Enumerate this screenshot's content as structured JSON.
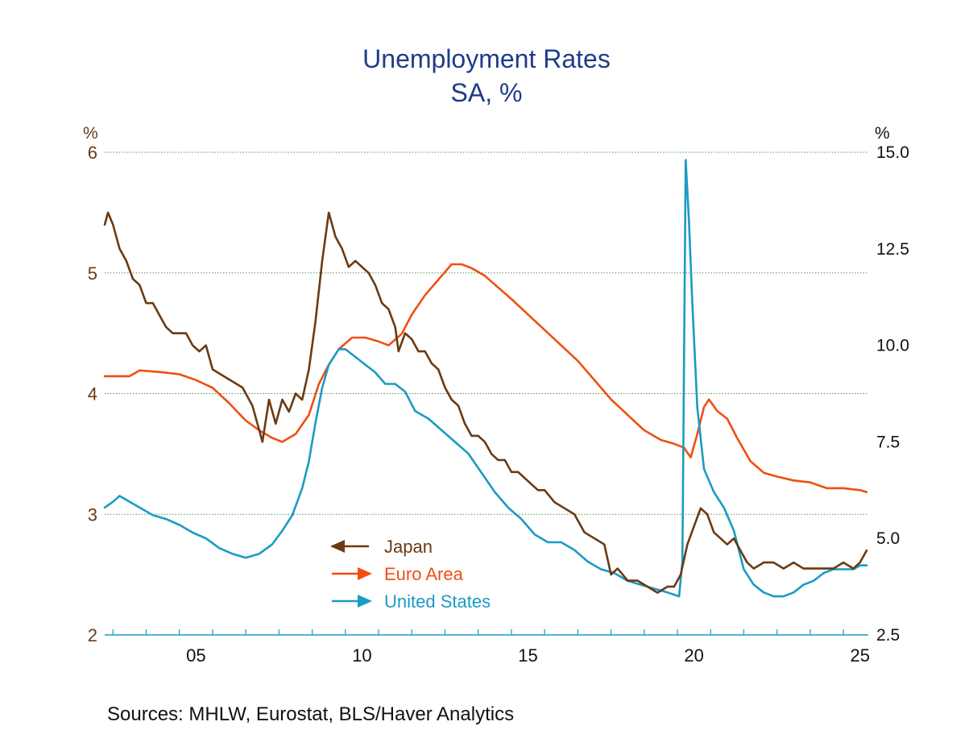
{
  "chart_data": {
    "type": "line",
    "title": "Unemployment Rates",
    "subtitle": "SA, %",
    "left_axis": {
      "unit": "%",
      "range": [
        2,
        6
      ],
      "ticks": [
        "2",
        "3",
        "4",
        "5",
        "6"
      ]
    },
    "right_axis": {
      "unit": "%",
      "range": [
        2.5,
        15.0
      ],
      "ticks": [
        "2.5",
        "5.0",
        "7.5",
        "10.0",
        "12.5",
        "15.0"
      ]
    },
    "x_axis": {
      "range": [
        2002.75,
        2025.75
      ],
      "ticks": [
        "05",
        "10",
        "15",
        "20",
        "25"
      ],
      "tick_years": [
        2005,
        2010,
        2015,
        2020,
        2025
      ]
    },
    "grid": "horizontal dotted at left-axis ticks",
    "legend_position": "lower-center",
    "source_text": "Sources:   MHLW, Eurostat, BLS/Haver Analytics",
    "series": [
      {
        "name": "Japan",
        "axis": "left",
        "color": "#6b3a12",
        "points": [
          [
            2002.75,
            5.4
          ],
          [
            2002.85,
            5.5
          ],
          [
            2003.0,
            5.4
          ],
          [
            2003.2,
            5.2
          ],
          [
            2003.4,
            5.1
          ],
          [
            2003.6,
            4.95
          ],
          [
            2003.8,
            4.9
          ],
          [
            2004.0,
            4.75
          ],
          [
            2004.2,
            4.75
          ],
          [
            2004.4,
            4.65
          ],
          [
            2004.6,
            4.55
          ],
          [
            2004.8,
            4.5
          ],
          [
            2005.0,
            4.5
          ],
          [
            2005.2,
            4.5
          ],
          [
            2005.4,
            4.4
          ],
          [
            2005.6,
            4.35
          ],
          [
            2005.8,
            4.4
          ],
          [
            2006.0,
            4.2
          ],
          [
            2006.3,
            4.15
          ],
          [
            2006.6,
            4.1
          ],
          [
            2006.9,
            4.05
          ],
          [
            2007.2,
            3.9
          ],
          [
            2007.4,
            3.7
          ],
          [
            2007.5,
            3.6
          ],
          [
            2007.7,
            3.95
          ],
          [
            2007.9,
            3.75
          ],
          [
            2008.1,
            3.95
          ],
          [
            2008.3,
            3.85
          ],
          [
            2008.5,
            4.0
          ],
          [
            2008.7,
            3.95
          ],
          [
            2008.9,
            4.2
          ],
          [
            2009.1,
            4.6
          ],
          [
            2009.3,
            5.1
          ],
          [
            2009.5,
            5.5
          ],
          [
            2009.7,
            5.3
          ],
          [
            2009.9,
            5.2
          ],
          [
            2010.1,
            5.05
          ],
          [
            2010.3,
            5.1
          ],
          [
            2010.5,
            5.05
          ],
          [
            2010.7,
            5.0
          ],
          [
            2010.9,
            4.9
          ],
          [
            2011.1,
            4.75
          ],
          [
            2011.3,
            4.7
          ],
          [
            2011.5,
            4.55
          ],
          [
            2011.6,
            4.35
          ],
          [
            2011.8,
            4.5
          ],
          [
            2012.0,
            4.45
          ],
          [
            2012.2,
            4.35
          ],
          [
            2012.4,
            4.35
          ],
          [
            2012.6,
            4.25
          ],
          [
            2012.8,
            4.2
          ],
          [
            2013.0,
            4.05
          ],
          [
            2013.2,
            3.95
          ],
          [
            2013.4,
            3.9
          ],
          [
            2013.6,
            3.75
          ],
          [
            2013.8,
            3.65
          ],
          [
            2014.0,
            3.65
          ],
          [
            2014.2,
            3.6
          ],
          [
            2014.4,
            3.5
          ],
          [
            2014.6,
            3.45
          ],
          [
            2014.8,
            3.45
          ],
          [
            2015.0,
            3.35
          ],
          [
            2015.2,
            3.35
          ],
          [
            2015.4,
            3.3
          ],
          [
            2015.6,
            3.25
          ],
          [
            2015.8,
            3.2
          ],
          [
            2016.0,
            3.2
          ],
          [
            2016.3,
            3.1
          ],
          [
            2016.6,
            3.05
          ],
          [
            2016.9,
            3.0
          ],
          [
            2017.2,
            2.85
          ],
          [
            2017.5,
            2.8
          ],
          [
            2017.8,
            2.75
          ],
          [
            2018.0,
            2.5
          ],
          [
            2018.2,
            2.55
          ],
          [
            2018.5,
            2.45
          ],
          [
            2018.8,
            2.45
          ],
          [
            2019.1,
            2.4
          ],
          [
            2019.4,
            2.35
          ],
          [
            2019.7,
            2.4
          ],
          [
            2019.9,
            2.4
          ],
          [
            2020.1,
            2.5
          ],
          [
            2020.3,
            2.75
          ],
          [
            2020.5,
            2.9
          ],
          [
            2020.7,
            3.05
          ],
          [
            2020.9,
            3.0
          ],
          [
            2021.1,
            2.85
          ],
          [
            2021.3,
            2.8
          ],
          [
            2021.5,
            2.75
          ],
          [
            2021.7,
            2.8
          ],
          [
            2021.9,
            2.7
          ],
          [
            2022.1,
            2.6
          ],
          [
            2022.3,
            2.55
          ],
          [
            2022.6,
            2.6
          ],
          [
            2022.9,
            2.6
          ],
          [
            2023.2,
            2.55
          ],
          [
            2023.5,
            2.6
          ],
          [
            2023.8,
            2.55
          ],
          [
            2024.1,
            2.55
          ],
          [
            2024.4,
            2.55
          ],
          [
            2024.7,
            2.55
          ],
          [
            2025.0,
            2.6
          ],
          [
            2025.3,
            2.55
          ],
          [
            2025.5,
            2.6
          ],
          [
            2025.7,
            2.7
          ]
        ]
      },
      {
        "name": "Euro Area",
        "axis": "right",
        "color": "#f04e12",
        "points": [
          [
            2002.75,
            9.2
          ],
          [
            2003.5,
            9.2
          ],
          [
            2003.8,
            9.35
          ],
          [
            2004.5,
            9.3
          ],
          [
            2005.0,
            9.25
          ],
          [
            2005.5,
            9.1
          ],
          [
            2006.0,
            8.9
          ],
          [
            2006.5,
            8.5
          ],
          [
            2007.0,
            8.05
          ],
          [
            2007.4,
            7.8
          ],
          [
            2007.8,
            7.6
          ],
          [
            2008.1,
            7.5
          ],
          [
            2008.5,
            7.7
          ],
          [
            2008.9,
            8.2
          ],
          [
            2009.2,
            9.0
          ],
          [
            2009.5,
            9.5
          ],
          [
            2009.8,
            9.9
          ],
          [
            2010.2,
            10.2
          ],
          [
            2010.6,
            10.2
          ],
          [
            2011.0,
            10.1
          ],
          [
            2011.3,
            10.0
          ],
          [
            2011.7,
            10.3
          ],
          [
            2012.0,
            10.8
          ],
          [
            2012.4,
            11.3
          ],
          [
            2012.8,
            11.7
          ],
          [
            2013.2,
            12.1
          ],
          [
            2013.5,
            12.1
          ],
          [
            2013.8,
            12.0
          ],
          [
            2014.2,
            11.8
          ],
          [
            2014.6,
            11.5
          ],
          [
            2015.0,
            11.2
          ],
          [
            2015.5,
            10.8
          ],
          [
            2016.0,
            10.4
          ],
          [
            2016.5,
            10.0
          ],
          [
            2017.0,
            9.6
          ],
          [
            2017.5,
            9.1
          ],
          [
            2018.0,
            8.6
          ],
          [
            2018.5,
            8.2
          ],
          [
            2019.0,
            7.8
          ],
          [
            2019.5,
            7.55
          ],
          [
            2019.9,
            7.45
          ],
          [
            2020.2,
            7.35
          ],
          [
            2020.4,
            7.1
          ],
          [
            2020.6,
            7.7
          ],
          [
            2020.8,
            8.4
          ],
          [
            2020.95,
            8.6
          ],
          [
            2021.2,
            8.3
          ],
          [
            2021.5,
            8.1
          ],
          [
            2021.8,
            7.6
          ],
          [
            2022.2,
            7.0
          ],
          [
            2022.6,
            6.7
          ],
          [
            2023.0,
            6.6
          ],
          [
            2023.5,
            6.5
          ],
          [
            2024.0,
            6.45
          ],
          [
            2024.5,
            6.3
          ],
          [
            2025.0,
            6.3
          ],
          [
            2025.5,
            6.25
          ],
          [
            2025.7,
            6.2
          ]
        ]
      },
      {
        "name": "United States",
        "axis": "right",
        "color": "#1a9bc4",
        "points": [
          [
            2002.75,
            5.8
          ],
          [
            2003.0,
            5.95
          ],
          [
            2003.2,
            6.1
          ],
          [
            2003.5,
            5.95
          ],
          [
            2003.8,
            5.8
          ],
          [
            2004.2,
            5.6
          ],
          [
            2004.6,
            5.5
          ],
          [
            2005.0,
            5.35
          ],
          [
            2005.4,
            5.15
          ],
          [
            2005.8,
            5.0
          ],
          [
            2006.2,
            4.75
          ],
          [
            2006.6,
            4.6
          ],
          [
            2007.0,
            4.5
          ],
          [
            2007.4,
            4.6
          ],
          [
            2007.8,
            4.85
          ],
          [
            2008.1,
            5.2
          ],
          [
            2008.4,
            5.6
          ],
          [
            2008.7,
            6.3
          ],
          [
            2008.9,
            7.0
          ],
          [
            2009.1,
            8.0
          ],
          [
            2009.3,
            8.9
          ],
          [
            2009.5,
            9.5
          ],
          [
            2009.8,
            9.9
          ],
          [
            2010.0,
            9.9
          ],
          [
            2010.3,
            9.7
          ],
          [
            2010.6,
            9.5
          ],
          [
            2010.9,
            9.3
          ],
          [
            2011.2,
            9.0
          ],
          [
            2011.5,
            9.0
          ],
          [
            2011.8,
            8.8
          ],
          [
            2012.1,
            8.3
          ],
          [
            2012.5,
            8.1
          ],
          [
            2012.9,
            7.8
          ],
          [
            2013.3,
            7.5
          ],
          [
            2013.7,
            7.2
          ],
          [
            2014.1,
            6.7
          ],
          [
            2014.5,
            6.2
          ],
          [
            2014.9,
            5.8
          ],
          [
            2015.3,
            5.5
          ],
          [
            2015.7,
            5.1
          ],
          [
            2016.1,
            4.9
          ],
          [
            2016.5,
            4.9
          ],
          [
            2016.9,
            4.7
          ],
          [
            2017.3,
            4.4
          ],
          [
            2017.7,
            4.2
          ],
          [
            2018.1,
            4.1
          ],
          [
            2018.5,
            3.9
          ],
          [
            2018.9,
            3.8
          ],
          [
            2019.3,
            3.7
          ],
          [
            2019.7,
            3.6
          ],
          [
            2020.05,
            3.5
          ],
          [
            2020.15,
            4.4
          ],
          [
            2020.25,
            14.8
          ],
          [
            2020.35,
            13.2
          ],
          [
            2020.45,
            11.1
          ],
          [
            2020.6,
            8.4
          ],
          [
            2020.8,
            6.8
          ],
          [
            2021.1,
            6.2
          ],
          [
            2021.4,
            5.8
          ],
          [
            2021.7,
            5.2
          ],
          [
            2022.0,
            4.2
          ],
          [
            2022.3,
            3.8
          ],
          [
            2022.6,
            3.6
          ],
          [
            2022.9,
            3.5
          ],
          [
            2023.2,
            3.5
          ],
          [
            2023.5,
            3.6
          ],
          [
            2023.8,
            3.8
          ],
          [
            2024.1,
            3.9
          ],
          [
            2024.4,
            4.1
          ],
          [
            2024.7,
            4.2
          ],
          [
            2025.0,
            4.2
          ],
          [
            2025.3,
            4.2
          ],
          [
            2025.5,
            4.3
          ],
          [
            2025.7,
            4.3
          ]
        ]
      }
    ]
  }
}
